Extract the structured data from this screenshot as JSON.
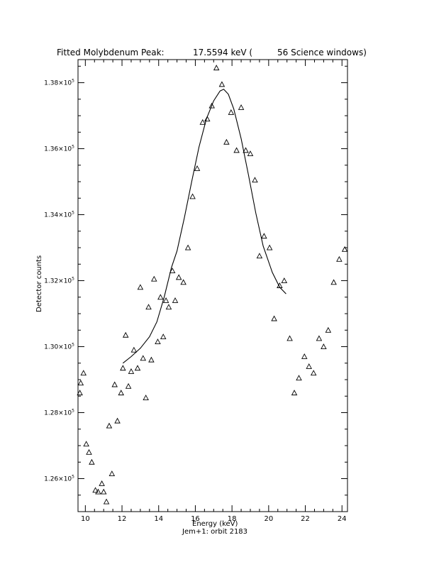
{
  "title": {
    "left": "Fitted Molybdenum Peak:",
    "value": "17.5594 keV (",
    "right": "56 Science windows)"
  },
  "xlabel": "Energy (keV)",
  "subtitle": "Jem+1: orbit 2183",
  "ylabel": "Detector counts",
  "chart_data": {
    "type": "scatter",
    "xlim": [
      9.6,
      24.3
    ],
    "ylim": [
      125000,
      138700
    ],
    "x_ticks": [
      {
        "value": 10,
        "label": "10"
      },
      {
        "value": 12,
        "label": "12"
      },
      {
        "value": 14,
        "label": "14"
      },
      {
        "value": 16,
        "label": "16"
      },
      {
        "value": 18,
        "label": "18"
      },
      {
        "value": 20,
        "label": "20"
      },
      {
        "value": 22,
        "label": "22"
      },
      {
        "value": 24,
        "label": "24"
      }
    ],
    "y_ticks": [
      {
        "value": 126000,
        "mantissa": "1.26",
        "exp": "5"
      },
      {
        "value": 128000,
        "mantissa": "1.28",
        "exp": "5"
      },
      {
        "value": 130000,
        "mantissa": "1.30",
        "exp": "5"
      },
      {
        "value": 132000,
        "mantissa": "1.32",
        "exp": "5"
      },
      {
        "value": 134000,
        "mantissa": "1.34",
        "exp": "5"
      },
      {
        "value": 136000,
        "mantissa": "1.36",
        "exp": "5"
      },
      {
        "value": 138000,
        "mantissa": "1.38",
        "exp": "5"
      }
    ],
    "grid": false,
    "series": [
      {
        "marker": "triangle-open",
        "points": [
          [
            9.7,
            128600
          ],
          [
            9.75,
            128900
          ],
          [
            9.9,
            129200
          ],
          [
            10.05,
            127050
          ],
          [
            10.2,
            126800
          ],
          [
            10.35,
            126500
          ],
          [
            10.55,
            125650
          ],
          [
            10.7,
            125600
          ],
          [
            10.9,
            125850
          ],
          [
            11.0,
            125600
          ],
          [
            11.15,
            125300
          ],
          [
            11.3,
            127600
          ],
          [
            11.45,
            126150
          ],
          [
            11.6,
            128850
          ],
          [
            11.75,
            127750
          ],
          [
            11.95,
            128600
          ],
          [
            12.05,
            129350
          ],
          [
            12.2,
            130350
          ],
          [
            12.35,
            128800
          ],
          [
            12.5,
            129250
          ],
          [
            12.65,
            129900
          ],
          [
            12.85,
            129350
          ],
          [
            13.0,
            131800
          ],
          [
            13.15,
            129650
          ],
          [
            13.3,
            128450
          ],
          [
            13.45,
            131200
          ],
          [
            13.6,
            129600
          ],
          [
            13.75,
            132050
          ],
          [
            13.95,
            130150
          ],
          [
            14.1,
            131500
          ],
          [
            14.25,
            130300
          ],
          [
            14.4,
            131400
          ],
          [
            14.55,
            131200
          ],
          [
            14.75,
            132300
          ],
          [
            14.9,
            131400
          ],
          [
            15.1,
            132100
          ],
          [
            15.35,
            131950
          ],
          [
            15.6,
            133000
          ],
          [
            15.85,
            134550
          ],
          [
            16.1,
            135400
          ],
          [
            16.4,
            136800
          ],
          [
            16.65,
            136900
          ],
          [
            16.9,
            137300
          ],
          [
            17.15,
            138450
          ],
          [
            17.45,
            137950
          ],
          [
            17.7,
            136200
          ],
          [
            17.95,
            137100
          ],
          [
            18.25,
            135950
          ],
          [
            18.5,
            137250
          ],
          [
            18.75,
            135950
          ],
          [
            19.0,
            135850
          ],
          [
            19.25,
            135050
          ],
          [
            19.5,
            132750
          ],
          [
            19.75,
            133350
          ],
          [
            20.05,
            133000
          ],
          [
            20.3,
            130850
          ],
          [
            20.6,
            131850
          ],
          [
            20.85,
            132000
          ],
          [
            21.15,
            130250
          ],
          [
            21.4,
            128600
          ],
          [
            21.65,
            129050
          ],
          [
            21.95,
            129700
          ],
          [
            22.2,
            129400
          ],
          [
            22.45,
            129200
          ],
          [
            22.75,
            130250
          ],
          [
            23.0,
            130000
          ],
          [
            23.25,
            130500
          ],
          [
            23.55,
            131950
          ],
          [
            23.85,
            132650
          ],
          [
            24.15,
            132950
          ]
        ]
      },
      {
        "marker": "line",
        "points": [
          [
            12.05,
            129500
          ],
          [
            12.5,
            129700
          ],
          [
            13.0,
            129950
          ],
          [
            13.5,
            130300
          ],
          [
            13.9,
            130750
          ],
          [
            14.3,
            131500
          ],
          [
            14.7,
            132400
          ],
          [
            15.0,
            132900
          ],
          [
            15.4,
            133900
          ],
          [
            15.8,
            135000
          ],
          [
            16.2,
            136050
          ],
          [
            16.6,
            136900
          ],
          [
            17.0,
            137450
          ],
          [
            17.35,
            137750
          ],
          [
            17.55,
            137800
          ],
          [
            17.8,
            137650
          ],
          [
            18.1,
            137200
          ],
          [
            18.5,
            136300
          ],
          [
            18.9,
            135200
          ],
          [
            19.3,
            134050
          ],
          [
            19.7,
            133050
          ],
          [
            20.2,
            132250
          ],
          [
            20.6,
            131800
          ],
          [
            20.95,
            131600
          ]
        ]
      }
    ]
  }
}
